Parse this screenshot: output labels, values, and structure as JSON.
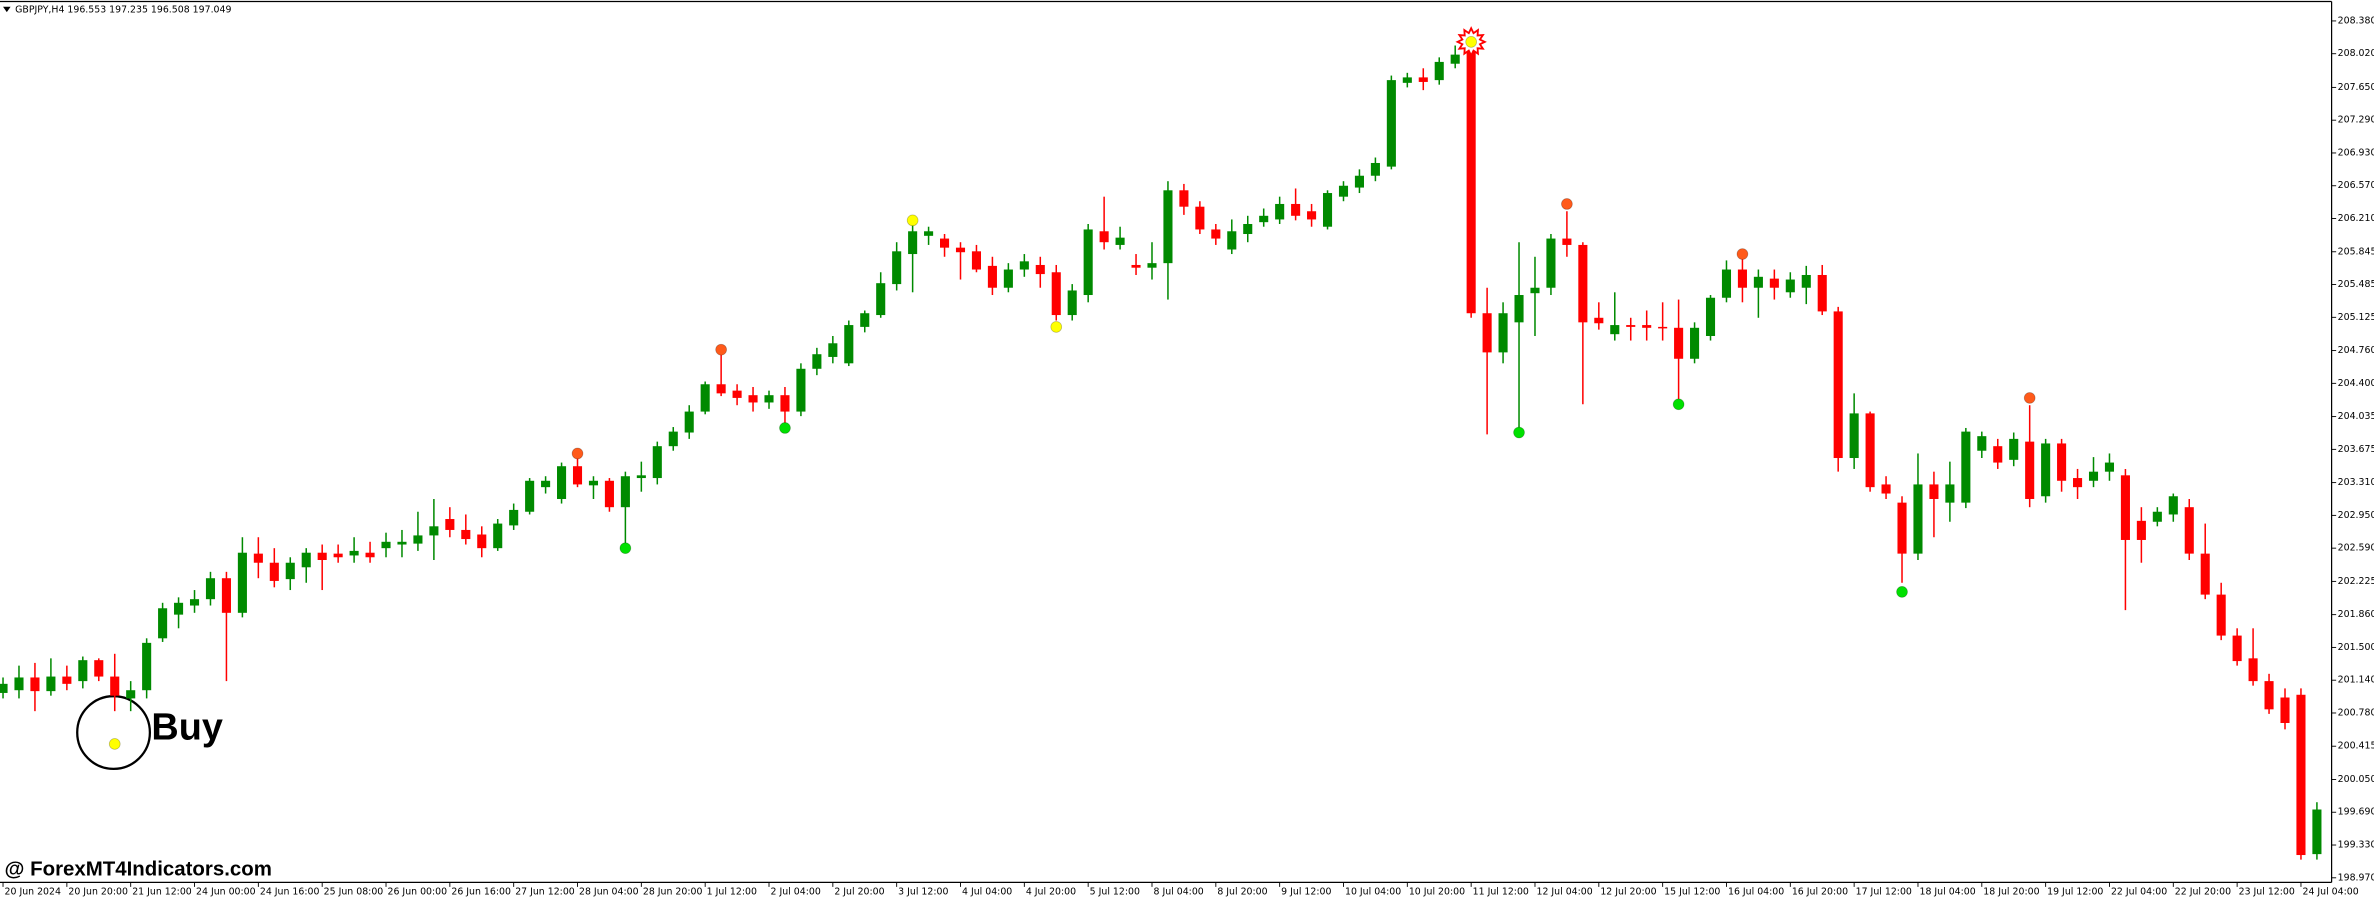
{
  "chart_data": {
    "type": "candlestick",
    "title": "GBPJPY,H4  196.553 197.235 196.508 197.049",
    "annotations": [
      "Buy",
      "@ ForexMT4Indicators.com"
    ],
    "up_color": "#008a00",
    "down_color": "#ff0000",
    "categories": [
      "20 Jun 2024",
      null,
      null,
      null,
      "20 Jun 20:00",
      null,
      null,
      null,
      "21 Jun 12:00",
      null,
      null,
      null,
      "24 Jun 00:00",
      null,
      null,
      null,
      "24 Jun 16:00",
      null,
      null,
      null,
      "25 Jun 08:00",
      null,
      null,
      null,
      "26 Jun 00:00",
      null,
      null,
      null,
      "26 Jun 16:00",
      null,
      null,
      null,
      "27 Jun 12:00",
      null,
      null,
      null,
      "28 Jun 04:00",
      null,
      null,
      null,
      "28 Jun 20:00",
      null,
      null,
      null,
      "1 Jul 12:00",
      null,
      null,
      null,
      "2 Jul 04:00",
      null,
      null,
      null,
      "2 Jul 20:00",
      null,
      null,
      null,
      "3 Jul 12:00",
      null,
      null,
      null,
      "4 Jul 04:00",
      null,
      null,
      null,
      "4 Jul 20:00",
      null,
      null,
      null,
      "5 Jul 12:00",
      null,
      null,
      null,
      "8 Jul 04:00",
      null,
      null,
      null,
      "8 Jul 20:00",
      null,
      null,
      null,
      "9 Jul 12:00",
      null,
      null,
      null,
      "10 Jul 04:00",
      null,
      null,
      null,
      "10 Jul 20:00",
      null,
      null,
      null,
      "11 Jul 12:00",
      null,
      null,
      null,
      "12 Jul 04:00",
      null,
      null,
      null,
      "12 Jul 20:00",
      null,
      null,
      null,
      "15 Jul 12:00",
      null,
      null,
      null,
      "16 Jul 04:00",
      null,
      null,
      null,
      "16 Jul 20:00",
      null,
      null,
      null,
      "17 Jul 12:00",
      null,
      null,
      null,
      "18 Jul 04:00",
      null,
      null,
      null,
      "18 Jul 20:00",
      null,
      null,
      null,
      "19 Jul 12:00",
      null,
      null,
      null,
      "22 Jul 04:00",
      null,
      null,
      null,
      "22 Jul 20:00",
      null,
      null,
      null,
      "23 Jul 12:00",
      null,
      null,
      null,
      "24 Jul 04:00",
      null
    ],
    "open": [
      201.0,
      201.03,
      201.17,
      201.02,
      201.18,
      201.13,
      201.36,
      201.18,
      200.94,
      201.03,
      201.6,
      201.86,
      201.96,
      202.03,
      202.26,
      201.88,
      202.53,
      202.43,
      202.25,
      202.38,
      202.54,
      202.53,
      202.51,
      202.54,
      202.59,
      202.63,
      202.64,
      202.73,
      202.91,
      202.79,
      202.74,
      202.59,
      202.84,
      202.99,
      203.26,
      203.13,
      203.49,
      203.28,
      203.33,
      203.04,
      203.36,
      203.36,
      203.71,
      203.86,
      204.09,
      204.39,
      204.32,
      204.27,
      204.19,
      204.27,
      204.09,
      204.56,
      204.69,
      204.62,
      205.02,
      205.15,
      205.49,
      205.82,
      206.02,
      205.99,
      205.89,
      205.85,
      205.69,
      205.45,
      205.65,
      205.7,
      205.62,
      205.15,
      205.37,
      206.07,
      205.92,
      205.7,
      205.67,
      205.72,
      206.52,
      206.34,
      206.09,
      205.87,
      206.04,
      206.17,
      206.2,
      206.37,
      206.29,
      206.12,
      206.45,
      206.55,
      206.68,
      206.78,
      207.7,
      207.76,
      207.73,
      207.91,
      208.08,
      205.17,
      204.74,
      205.07,
      205.39,
      205.45,
      205.99,
      205.92,
      205.12,
      204.94,
      205.04,
      205.04,
      205.02,
      205.01,
      204.67,
      204.92,
      205.34,
      205.65,
      205.45,
      205.55,
      205.4,
      205.45,
      205.59,
      205.19,
      203.58,
      204.07,
      203.29,
      203.09,
      202.53,
      203.29,
      203.09,
      203.09,
      203.66,
      203.71,
      203.56,
      203.76,
      203.16,
      203.74,
      203.36,
      203.33,
      203.43,
      203.39,
      202.89,
      202.88,
      202.96,
      203.04,
      202.53,
      202.08,
      201.63,
      201.38,
      201.13,
      200.95,
      200.98,
      199.23
    ],
    "high": [
      201.17,
      201.3,
      201.33,
      201.38,
      201.3,
      201.4,
      201.38,
      201.43,
      201.13,
      201.6,
      201.99,
      202.05,
      202.13,
      202.33,
      202.33,
      202.71,
      202.71,
      202.59,
      202.49,
      202.59,
      202.63,
      202.63,
      202.71,
      202.66,
      202.76,
      202.79,
      202.99,
      203.13,
      203.04,
      202.96,
      202.83,
      202.91,
      203.08,
      203.36,
      203.38,
      203.53,
      203.66,
      203.38,
      203.36,
      203.43,
      203.54,
      203.76,
      203.92,
      204.16,
      204.42,
      204.76,
      204.39,
      204.36,
      204.32,
      204.36,
      204.62,
      204.79,
      204.92,
      205.09,
      205.2,
      205.62,
      205.95,
      206.15,
      206.12,
      206.04,
      205.95,
      205.92,
      205.79,
      205.72,
      205.82,
      205.79,
      205.7,
      205.49,
      206.15,
      206.45,
      206.12,
      205.82,
      205.95,
      206.62,
      206.59,
      206.4,
      206.15,
      206.2,
      206.24,
      206.32,
      206.45,
      206.54,
      206.37,
      206.52,
      206.62,
      206.75,
      206.88,
      207.78,
      207.81,
      207.86,
      207.98,
      208.11,
      208.25,
      205.45,
      205.29,
      205.95,
      205.79,
      206.04,
      206.29,
      205.95,
      205.29,
      205.4,
      205.12,
      205.2,
      205.29,
      205.32,
      205.07,
      205.37,
      205.75,
      205.82,
      205.65,
      205.65,
      205.62,
      205.69,
      205.7,
      205.24,
      204.29,
      204.09,
      203.38,
      203.16,
      203.63,
      203.43,
      203.54,
      203.91,
      203.87,
      203.79,
      203.86,
      204.16,
      203.79,
      203.79,
      203.46,
      203.59,
      203.63,
      203.46,
      203.04,
      203.04,
      203.19,
      203.13,
      202.86,
      202.21,
      201.71,
      201.71,
      201.21,
      201.05,
      201.05,
      199.8
    ],
    "low": [
      200.94,
      200.94,
      200.8,
      200.97,
      201.03,
      201.05,
      201.13,
      200.8,
      200.8,
      200.94,
      201.56,
      201.71,
      201.88,
      201.96,
      201.13,
      201.83,
      202.26,
      202.16,
      202.13,
      202.21,
      202.13,
      202.43,
      202.43,
      202.43,
      202.49,
      202.49,
      202.56,
      202.46,
      202.71,
      202.63,
      202.49,
      202.56,
      202.79,
      202.96,
      203.19,
      203.08,
      203.26,
      203.13,
      202.99,
      202.63,
      203.21,
      203.29,
      203.66,
      203.79,
      204.06,
      204.26,
      204.16,
      204.09,
      204.12,
      203.96,
      204.04,
      204.49,
      204.62,
      204.59,
      204.96,
      205.12,
      205.42,
      205.4,
      205.92,
      205.79,
      205.54,
      205.62,
      205.37,
      205.4,
      205.57,
      205.45,
      205.09,
      205.09,
      205.29,
      205.87,
      205.87,
      205.59,
      205.54,
      205.32,
      206.25,
      206.04,
      205.92,
      205.82,
      205.95,
      206.12,
      206.15,
      206.19,
      206.12,
      206.09,
      206.4,
      206.49,
      206.62,
      206.75,
      207.65,
      207.62,
      207.68,
      207.86,
      205.12,
      203.84,
      204.62,
      203.86,
      204.92,
      205.37,
      205.79,
      204.17,
      204.99,
      204.87,
      204.87,
      204.87,
      204.87,
      204.16,
      204.62,
      204.87,
      205.29,
      205.29,
      205.12,
      205.32,
      205.34,
      205.27,
      205.15,
      203.43,
      203.46,
      203.21,
      203.13,
      202.21,
      202.46,
      202.71,
      202.88,
      203.03,
      203.58,
      203.46,
      203.49,
      203.04,
      203.09,
      203.21,
      203.13,
      203.26,
      203.33,
      201.91,
      202.43,
      202.83,
      202.88,
      202.46,
      202.03,
      201.58,
      201.3,
      201.08,
      200.77,
      200.6,
      199.17,
      199.17
    ],
    "close": [
      201.1,
      201.17,
      201.02,
      201.18,
      201.1,
      201.36,
      201.18,
      200.97,
      201.03,
      201.55,
      201.93,
      201.99,
      202.03,
      202.26,
      201.88,
      202.54,
      202.43,
      202.23,
      202.43,
      202.54,
      202.46,
      202.49,
      202.56,
      202.49,
      202.66,
      202.66,
      202.73,
      202.83,
      202.79,
      202.69,
      202.59,
      202.86,
      203.01,
      203.33,
      203.33,
      203.49,
      203.29,
      203.33,
      203.04,
      203.38,
      203.39,
      203.71,
      203.87,
      204.09,
      204.39,
      204.29,
      204.24,
      204.19,
      204.27,
      204.09,
      204.56,
      204.72,
      204.84,
      205.04,
      205.17,
      205.5,
      205.85,
      206.07,
      206.07,
      205.89,
      205.84,
      205.65,
      205.45,
      205.65,
      205.74,
      205.6,
      205.15,
      205.42,
      206.09,
      205.95,
      206.0,
      205.67,
      205.72,
      206.52,
      206.34,
      206.09,
      205.99,
      206.07,
      206.15,
      206.24,
      206.37,
      206.24,
      206.2,
      206.49,
      206.57,
      206.68,
      206.82,
      207.73,
      207.76,
      207.71,
      207.93,
      208.01,
      205.17,
      204.74,
      205.17,
      205.37,
      205.45,
      205.99,
      205.92,
      205.07,
      205.06,
      205.04,
      205.02,
      205.01,
      205.01,
      204.67,
      205.01,
      205.34,
      205.65,
      205.45,
      205.57,
      205.45,
      205.54,
      205.59,
      205.19,
      203.58,
      204.07,
      203.26,
      203.19,
      202.53,
      203.29,
      203.13,
      203.29,
      203.87,
      203.82,
      203.53,
      203.79,
      203.13,
      203.74,
      203.33,
      203.26,
      203.43,
      203.53,
      202.68,
      202.68,
      202.99,
      203.16,
      202.53,
      202.08,
      201.63,
      201.35,
      201.13,
      200.82,
      200.67,
      199.22,
      199.72
    ],
    "signals": [
      {
        "bar": 7,
        "price": 200.44,
        "color": "#ffff00"
      },
      {
        "bar": 36,
        "price": 203.63,
        "color": "#ff5a1a"
      },
      {
        "bar": 39,
        "price": 202.59,
        "color": "#00e000"
      },
      {
        "bar": 45,
        "price": 204.77,
        "color": "#ff5a1a"
      },
      {
        "bar": 49,
        "price": 203.91,
        "color": "#00e000"
      },
      {
        "bar": 57,
        "price": 206.19,
        "color": "#ffff00"
      },
      {
        "bar": 66,
        "price": 205.02,
        "color": "#ffff00"
      },
      {
        "bar": 92,
        "price": 208.15,
        "color": "#ffff00",
        "burst": true
      },
      {
        "bar": 95,
        "price": 203.86,
        "color": "#00e000"
      },
      {
        "bar": 98,
        "price": 206.37,
        "color": "#ff5a1a"
      },
      {
        "bar": 105,
        "price": 204.17,
        "color": "#00e000"
      },
      {
        "bar": 109,
        "price": 205.82,
        "color": "#ff5a1a"
      },
      {
        "bar": 119,
        "price": 202.11,
        "color": "#00e000"
      },
      {
        "bar": 127,
        "price": 204.24,
        "color": "#ff5a1a"
      }
    ],
    "ylim": [
      198.92,
      208.56
    ],
    "yticks": [
      {
        "value": 208.38,
        "label": "208.380"
      },
      {
        "value": 208.02,
        "label": "208.020"
      },
      {
        "value": 207.65,
        "label": "207.650"
      },
      {
        "value": 207.29,
        "label": "207.290"
      },
      {
        "value": 206.93,
        "label": "206.930"
      },
      {
        "value": 206.57,
        "label": "206.570"
      },
      {
        "value": 206.21,
        "label": "206.210"
      },
      205.845,
      205.485,
      205.125,
      {
        "value": 204.76,
        "label": "204.760"
      },
      {
        "value": 204.4,
        "label": "204.400"
      },
      204.035,
      203.675,
      {
        "value": 203.31,
        "label": "203.310"
      },
      {
        "value": 202.95,
        "label": "202.950"
      },
      {
        "value": 202.59,
        "label": "202.590"
      },
      202.225,
      {
        "value": 201.86,
        "label": "201.860"
      },
      {
        "value": 201.5,
        "label": "201.500"
      },
      {
        "value": 201.14,
        "label": "201.140"
      },
      {
        "value": 200.78,
        "label": "200.780"
      },
      200.415,
      {
        "value": 200.05,
        "label": "200.050"
      },
      {
        "value": 199.69,
        "label": "199.690"
      },
      {
        "value": 199.33,
        "label": "199.330"
      },
      {
        "value": 198.97,
        "label": "198.970"
      }
    ]
  }
}
